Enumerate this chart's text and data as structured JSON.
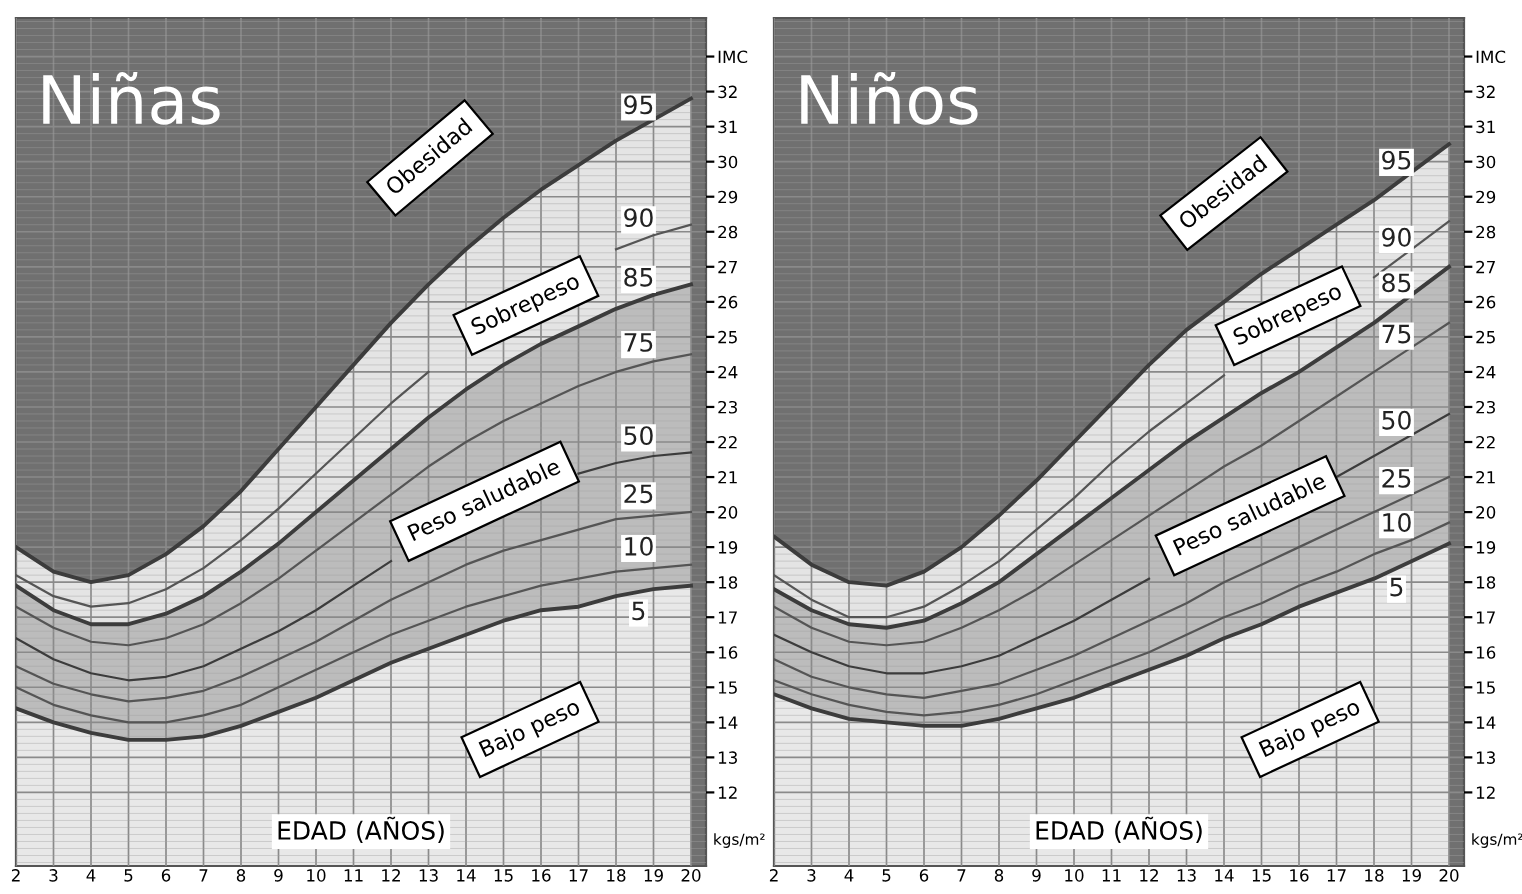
{
  "chart_data": [
    {
      "type": "line",
      "title": "Niñas",
      "xlabel": "EDAD (AÑOS)",
      "x": [
        2,
        3,
        4,
        5,
        6,
        7,
        8,
        9,
        10,
        11,
        12,
        13,
        14,
        15,
        16,
        17,
        18,
        19,
        20
      ],
      "xlim": [
        2,
        20.4
      ],
      "xticks": [
        2,
        3,
        4,
        5,
        6,
        7,
        8,
        9,
        10,
        11,
        12,
        13,
        14,
        15,
        16,
        17,
        18,
        19,
        20
      ],
      "ylim": [
        9.9,
        34.1
      ],
      "yticks": [
        12,
        13,
        14,
        15,
        16,
        17,
        18,
        19,
        20,
        21,
        22,
        23,
        24,
        25,
        26,
        27,
        28,
        29,
        30,
        31,
        32,
        {
          "value": 33,
          "label": "IMC"
        }
      ],
      "grid": true,
      "annotations": [
        "Obesidad",
        "Sobrepeso",
        "Peso saludable",
        "Bajo peso",
        "kgs/m²"
      ],
      "series": [
        {
          "name": "5",
          "type": "area",
          "color": "#e8e8e8",
          "values": [
            14.4,
            14.0,
            13.7,
            13.5,
            13.5,
            13.6,
            13.9,
            14.3,
            14.7,
            15.2,
            15.7,
            16.1,
            16.5,
            16.9,
            17.2,
            17.3,
            17.6,
            17.8,
            17.9
          ]
        },
        {
          "name": "10",
          "color": "#555555",
          "values": [
            15.0,
            14.5,
            14.2,
            14.0,
            14.0,
            14.2,
            14.5,
            15.0,
            15.5,
            16.0,
            16.5,
            16.9,
            17.3,
            17.6,
            17.9,
            18.1,
            18.3,
            18.4,
            18.5
          ]
        },
        {
          "name": "25",
          "color": "#555555",
          "values": [
            15.6,
            15.1,
            14.8,
            14.6,
            14.7,
            14.9,
            15.3,
            15.8,
            16.3,
            16.9,
            17.5,
            18.0,
            18.5,
            18.9,
            19.2,
            19.5,
            19.8,
            19.9,
            20.0
          ]
        },
        {
          "name": "50",
          "color": "#3c3c3c",
          "values": [
            16.4,
            15.8,
            15.4,
            15.2,
            15.3,
            15.6,
            16.1,
            16.6,
            17.2,
            17.9,
            18.6,
            null,
            null,
            null,
            null,
            21.1,
            21.4,
            21.6,
            21.7
          ]
        },
        {
          "name": "75",
          "color": "#555555",
          "values": [
            17.3,
            16.7,
            16.3,
            16.2,
            16.4,
            16.8,
            17.4,
            18.1,
            18.9,
            19.7,
            20.5,
            21.3,
            22.0,
            22.6,
            23.1,
            23.6,
            24.0,
            24.3,
            24.5
          ]
        },
        {
          "name": "85",
          "type": "area",
          "color": "#bcbcbc",
          "values": [
            17.9,
            17.2,
            16.8,
            16.8,
            17.1,
            17.6,
            18.3,
            19.1,
            20.0,
            20.9,
            21.8,
            22.7,
            23.5,
            24.2,
            24.8,
            25.3,
            25.8,
            26.2,
            26.5
          ]
        },
        {
          "name": "90",
          "color": "#555555",
          "values": [
            18.2,
            17.6,
            17.3,
            17.4,
            17.8,
            18.4,
            19.2,
            20.1,
            21.1,
            22.1,
            23.1,
            24.0,
            null,
            null,
            null,
            null,
            27.5,
            27.9,
            28.2
          ]
        },
        {
          "name": "95",
          "type": "area",
          "color": "#e4e4e4",
          "values": [
            19.0,
            18.3,
            18.0,
            18.2,
            18.8,
            19.6,
            20.6,
            21.8,
            23.0,
            24.2,
            25.4,
            26.5,
            27.5,
            28.4,
            29.2,
            29.9,
            30.6,
            31.2,
            31.8
          ]
        }
      ]
    },
    {
      "type": "line",
      "title": "Niños",
      "xlabel": "EDAD (AÑOS)",
      "x": [
        2,
        3,
        4,
        5,
        6,
        7,
        8,
        9,
        10,
        11,
        12,
        13,
        14,
        15,
        16,
        17,
        18,
        19,
        20
      ],
      "xlim": [
        2,
        20.4
      ],
      "xticks": [
        2,
        3,
        4,
        5,
        6,
        7,
        8,
        9,
        10,
        11,
        12,
        13,
        14,
        15,
        16,
        17,
        18,
        19,
        20
      ],
      "ylim": [
        9.9,
        34.1
      ],
      "yticks": [
        12,
        13,
        14,
        15,
        16,
        17,
        18,
        19,
        20,
        21,
        22,
        23,
        24,
        25,
        26,
        27,
        28,
        29,
        30,
        31,
        32,
        {
          "value": 33,
          "label": "IMC"
        }
      ],
      "grid": true,
      "annotations": [
        "Obesidad",
        "Sobrepeso",
        "Peso saludable",
        "Bajo peso",
        "kgs/m²"
      ],
      "series": [
        {
          "name": "5",
          "type": "area",
          "color": "#e8e8e8",
          "values": [
            14.8,
            14.4,
            14.1,
            14.0,
            13.9,
            13.9,
            14.1,
            14.4,
            14.7,
            15.1,
            15.5,
            15.9,
            16.4,
            16.8,
            17.3,
            17.7,
            18.1,
            18.6,
            19.1
          ]
        },
        {
          "name": "10",
          "color": "#555555",
          "values": [
            15.2,
            14.8,
            14.5,
            14.3,
            14.2,
            14.3,
            14.5,
            14.8,
            15.2,
            15.6,
            16.0,
            16.5,
            17.0,
            17.4,
            17.9,
            18.3,
            18.8,
            19.2,
            19.7
          ]
        },
        {
          "name": "25",
          "color": "#555555",
          "values": [
            15.8,
            15.3,
            15.0,
            14.8,
            14.7,
            14.9,
            15.1,
            15.5,
            15.9,
            16.4,
            16.9,
            17.4,
            18.0,
            18.5,
            19.0,
            19.5,
            20.0,
            20.5,
            21.0
          ]
        },
        {
          "name": "50",
          "color": "#3c3c3c",
          "values": [
            16.5,
            16.0,
            15.6,
            15.4,
            15.4,
            15.6,
            15.9,
            16.4,
            16.9,
            17.5,
            18.1,
            null,
            null,
            null,
            null,
            21.0,
            21.6,
            22.2,
            22.8
          ]
        },
        {
          "name": "75",
          "color": "#555555",
          "values": [
            17.3,
            16.7,
            16.3,
            16.2,
            16.3,
            16.7,
            17.2,
            17.8,
            18.5,
            19.2,
            19.9,
            20.6,
            21.3,
            21.9,
            22.6,
            23.3,
            24.0,
            24.7,
            25.4
          ]
        },
        {
          "name": "85",
          "type": "area",
          "color": "#bcbcbc",
          "values": [
            17.8,
            17.2,
            16.8,
            16.7,
            16.9,
            17.4,
            18.0,
            18.8,
            19.6,
            20.4,
            21.2,
            22.0,
            22.7,
            23.4,
            24.0,
            24.7,
            25.4,
            26.2,
            27.0
          ]
        },
        {
          "name": "90",
          "color": "#555555",
          "values": [
            18.2,
            17.5,
            17.0,
            17.0,
            17.3,
            17.9,
            18.6,
            19.5,
            20.4,
            21.4,
            22.3,
            23.1,
            23.9,
            null,
            null,
            null,
            26.7,
            27.5,
            28.3
          ]
        },
        {
          "name": "95",
          "type": "area",
          "color": "#e4e4e4",
          "values": [
            19.3,
            18.5,
            18.0,
            17.9,
            18.3,
            19.0,
            19.9,
            20.9,
            22.0,
            23.1,
            24.2,
            25.2,
            26.0,
            26.8,
            27.5,
            28.2,
            28.9,
            29.7,
            30.5
          ]
        }
      ]
    }
  ]
}
